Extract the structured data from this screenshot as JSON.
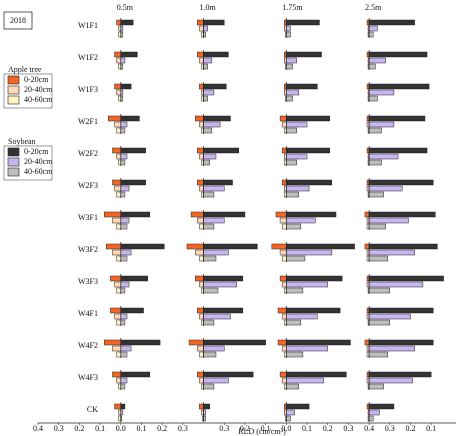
{
  "chart_data": {
    "type": "bar",
    "year": "2018",
    "columns": [
      "0.5m",
      "1.0m",
      "1.75m",
      "2.5m"
    ],
    "rows": [
      "W1F1",
      "W1F2",
      "W1F3",
      "W2F1",
      "W2F2",
      "W2F3",
      "W3F1",
      "W3F2",
      "W3F3",
      "W4F1",
      "W4F2",
      "W4F3",
      "CK"
    ],
    "xlabel": "RLD (cm/cm³)",
    "xlim": [
      -0.4,
      1.62
    ],
    "panel_offsets": [
      0,
      0.4,
      0.8,
      1.2
    ],
    "xticks": [
      {
        "value": -0.4,
        "label": "0.4"
      },
      {
        "value": -0.3,
        "label": "0.3"
      },
      {
        "value": -0.2,
        "label": "0.2"
      },
      {
        "value": -0.1,
        "label": "0.1"
      },
      {
        "value": 0,
        "label": "0.0"
      },
      {
        "value": 0.1,
        "label": "0.1"
      },
      {
        "value": 0.2,
        "label": "0.2"
      },
      {
        "value": 0.3,
        "label": "0.3"
      },
      {
        "value": 0.5,
        "label": "0.3"
      },
      {
        "value": 0.6,
        "label": "0.2"
      },
      {
        "value": 0.7,
        "label": "0.1"
      },
      {
        "value": 0.8,
        "label": "0.0"
      },
      {
        "value": 0.9,
        "label": "0.1"
      },
      {
        "value": 1.0,
        "label": "0.2"
      },
      {
        "value": 1.1,
        "label": "0.3"
      },
      {
        "value": 1.2,
        "label": "0.4"
      },
      {
        "value": 1.3,
        "label": "0.3"
      },
      {
        "value": 1.4,
        "label": "0.2"
      },
      {
        "value": 1.5,
        "label": "0.1"
      }
    ],
    "legend_groups": [
      {
        "title": "Apple tree",
        "side": "left",
        "series": [
          {
            "name": "0-20cm",
            "color": "#f26522",
            "values": [
              [
                0.02,
                0.03,
                0.01,
                0.01
              ],
              [
                0.03,
                0.03,
                0.01,
                0.01
              ],
              [
                0.03,
                0.02,
                0.01,
                0.01
              ],
              [
                0.06,
                0.04,
                0.03,
                0.01
              ],
              [
                0.04,
                0.03,
                0.02,
                0.01
              ],
              [
                0.04,
                0.03,
                0.02,
                0.01
              ],
              [
                0.08,
                0.06,
                0.05,
                0.02
              ],
              [
                0.07,
                0.08,
                0.07,
                0.02
              ],
              [
                0.05,
                0.04,
                0.03,
                0.01
              ],
              [
                0.05,
                0.03,
                0.04,
                0.01
              ],
              [
                0.08,
                0.07,
                0.04,
                0.02
              ],
              [
                0.04,
                0.03,
                0.03,
                0.01
              ],
              [
                0.03,
                0.02,
                0.01,
                0.01
              ]
            ]
          },
          {
            "name": "20-40cm",
            "color": "#fdd9b8",
            "values": [
              [
                0.01,
                0.02,
                0.01,
                0.005
              ],
              [
                0.02,
                0.02,
                0.01,
                0.005
              ],
              [
                0.02,
                0.01,
                0.01,
                0.005
              ],
              [
                0.03,
                0.02,
                0.02,
                0.01
              ],
              [
                0.02,
                0.02,
                0.01,
                0.005
              ],
              [
                0.03,
                0.02,
                0.01,
                0.01
              ],
              [
                0.04,
                0.03,
                0.03,
                0.01
              ],
              [
                0.04,
                0.04,
                0.03,
                0.01
              ],
              [
                0.03,
                0.02,
                0.02,
                0.01
              ],
              [
                0.03,
                0.02,
                0.02,
                0.01
              ],
              [
                0.04,
                0.03,
                0.02,
                0.01
              ],
              [
                0.02,
                0.02,
                0.02,
                0.01
              ],
              [
                0.01,
                0.01,
                0.01,
                0.005
              ]
            ]
          },
          {
            "name": "40-60cm",
            "color": "#fff3bf",
            "values": [
              [
                0.01,
                0.01,
                0.005,
                0.005
              ],
              [
                0.01,
                0.01,
                0.005,
                0.005
              ],
              [
                0.01,
                0.01,
                0.005,
                0.005
              ],
              [
                0.02,
                0.01,
                0.01,
                0.005
              ],
              [
                0.01,
                0.01,
                0.01,
                0.005
              ],
              [
                0.02,
                0.01,
                0.01,
                0.005
              ],
              [
                0.02,
                0.02,
                0.02,
                0.01
              ],
              [
                0.02,
                0.02,
                0.02,
                0.01
              ],
              [
                0.02,
                0.01,
                0.01,
                0.005
              ],
              [
                0.02,
                0.01,
                0.01,
                0.005
              ],
              [
                0.02,
                0.02,
                0.01,
                0.01
              ],
              [
                0.01,
                0.01,
                0.01,
                0.005
              ],
              [
                0.01,
                0.005,
                0.005,
                0.005
              ]
            ]
          }
        ]
      },
      {
        "title": "Soybean",
        "side": "right",
        "series": [
          {
            "name": "0-20cm",
            "color": "#333333",
            "values": [
              [
                0.06,
                0.1,
                0.16,
                0.22
              ],
              [
                0.08,
                0.12,
                0.17,
                0.28
              ],
              [
                0.05,
                0.11,
                0.15,
                0.29
              ],
              [
                0.09,
                0.13,
                0.21,
                0.27
              ],
              [
                0.12,
                0.17,
                0.21,
                0.28
              ],
              [
                0.12,
                0.14,
                0.22,
                0.31
              ],
              [
                0.14,
                0.2,
                0.24,
                0.32
              ],
              [
                0.21,
                0.26,
                0.33,
                0.33
              ],
              [
                0.13,
                0.19,
                0.27,
                0.36
              ],
              [
                0.11,
                0.19,
                0.26,
                0.31
              ],
              [
                0.19,
                0.3,
                0.31,
                0.31
              ],
              [
                0.14,
                0.24,
                0.29,
                0.3
              ],
              [
                0.02,
                0.03,
                0.11,
                0.12
              ]
            ]
          },
          {
            "name": "20-40cm",
            "color": "#c7b5f0",
            "values": [
              [
                0.01,
                0.02,
                0.02,
                0.04
              ],
              [
                0.02,
                0.04,
                0.05,
                0.08
              ],
              [
                0.01,
                0.05,
                0.06,
                0.12
              ],
              [
                0.03,
                0.08,
                0.1,
                0.12
              ],
              [
                0.03,
                0.06,
                0.1,
                0.14
              ],
              [
                0.04,
                0.1,
                0.11,
                0.16
              ],
              [
                0.04,
                0.1,
                0.14,
                0.19
              ],
              [
                0.05,
                0.12,
                0.22,
                0.22
              ],
              [
                0.04,
                0.16,
                0.2,
                0.26
              ],
              [
                0.03,
                0.13,
                0.15,
                0.2
              ],
              [
                0.05,
                0.1,
                0.2,
                0.22
              ],
              [
                0.03,
                0.12,
                0.18,
                0.21
              ],
              [
                0.01,
                0.01,
                0.04,
                0.05
              ]
            ]
          },
          {
            "name": "40-60cm",
            "color": "#bdbdbd",
            "values": [
              [
                0.01,
                0.01,
                0.02,
                0.02
              ],
              [
                0.01,
                0.02,
                0.03,
                0.03
              ],
              [
                0.01,
                0.02,
                0.03,
                0.04
              ],
              [
                0.02,
                0.04,
                0.05,
                0.06
              ],
              [
                0.02,
                0.03,
                0.05,
                0.06
              ],
              [
                0.02,
                0.05,
                0.06,
                0.07
              ],
              [
                0.03,
                0.05,
                0.07,
                0.08
              ],
              [
                0.03,
                0.06,
                0.09,
                0.09
              ],
              [
                0.02,
                0.07,
                0.08,
                0.1
              ],
              [
                0.02,
                0.05,
                0.07,
                0.1
              ],
              [
                0.03,
                0.06,
                0.08,
                0.09
              ],
              [
                0.02,
                0.05,
                0.06,
                0.07
              ],
              [
                0.005,
                0.01,
                0.02,
                0.02
              ]
            ]
          }
        ]
      }
    ]
  }
}
